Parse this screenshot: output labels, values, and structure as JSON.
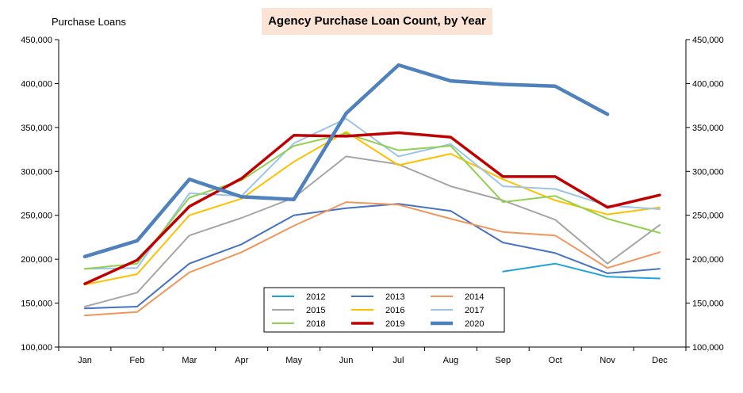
{
  "chart_data": {
    "type": "line",
    "title": "Agency Purchase Loan Count, by Year",
    "ylabel": "Purchase Loans",
    "xlabel": "",
    "categories": [
      "Jan",
      "Feb",
      "Mar",
      "Apr",
      "May",
      "Jun",
      "Jul",
      "Aug",
      "Sep",
      "Oct",
      "Nov",
      "Dec"
    ],
    "ylim": [
      100000,
      450000
    ],
    "yticks": [
      "100,000",
      "150,000",
      "200,000",
      "250,000",
      "300,000",
      "350,000",
      "400,000",
      "450,000"
    ],
    "ytick_values": [
      100000,
      150000,
      200000,
      250000,
      300000,
      350000,
      400000,
      450000
    ],
    "secondary_y_axis": true,
    "grid": false,
    "legend_position": "bottom-center",
    "series": [
      {
        "name": "2012",
        "color": "#1fa3dc",
        "width": 2,
        "values": [
          null,
          null,
          null,
          null,
          null,
          null,
          null,
          null,
          186000,
          195000,
          180000,
          178000
        ]
      },
      {
        "name": "2013",
        "color": "#4472c4",
        "width": 2,
        "values": [
          144000,
          146000,
          195000,
          217000,
          250000,
          258000,
          263000,
          255000,
          219000,
          207000,
          184000,
          189000
        ]
      },
      {
        "name": "2014",
        "color": "#f0965a",
        "width": 2,
        "values": [
          136000,
          140000,
          185000,
          208000,
          238000,
          265000,
          262000,
          246000,
          231000,
          227000,
          190000,
          208000
        ]
      },
      {
        "name": "2015",
        "color": "#a6a6a6",
        "width": 2,
        "values": [
          146000,
          162000,
          227000,
          247000,
          270000,
          317000,
          308000,
          283000,
          267000,
          245000,
          195000,
          239000
        ]
      },
      {
        "name": "2016",
        "color": "#ffc000",
        "width": 2,
        "values": [
          171000,
          183000,
          250000,
          269000,
          311000,
          345000,
          307000,
          320000,
          291000,
          267000,
          251000,
          259000
        ]
      },
      {
        "name": "2017",
        "color": "#9dc3e6",
        "width": 2,
        "values": [
          189000,
          190000,
          275000,
          272000,
          332000,
          360000,
          317000,
          331000,
          283000,
          280000,
          261000,
          257000
        ]
      },
      {
        "name": "2018",
        "color": "#92d050",
        "width": 2,
        "values": [
          189000,
          195000,
          270000,
          290000,
          329000,
          343000,
          324000,
          329000,
          265000,
          272000,
          246000,
          230000
        ]
      },
      {
        "name": "2019",
        "color": "#c00000",
        "width": 3.5,
        "values": [
          172000,
          199000,
          260000,
          292000,
          341000,
          340000,
          344000,
          339000,
          294000,
          294000,
          259000,
          273000
        ]
      },
      {
        "name": "2020",
        "color": "#4f81bd",
        "width": 4.5,
        "values": [
          203000,
          221000,
          291000,
          271000,
          268000,
          366000,
          421000,
          403000,
          399000,
          397000,
          365000,
          null
        ]
      }
    ]
  }
}
